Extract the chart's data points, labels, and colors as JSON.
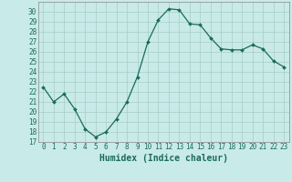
{
  "x": [
    0,
    1,
    2,
    3,
    4,
    5,
    6,
    7,
    8,
    9,
    10,
    11,
    12,
    13,
    14,
    15,
    16,
    17,
    18,
    19,
    20,
    21,
    22,
    23
  ],
  "y": [
    22.5,
    21.0,
    21.8,
    20.3,
    18.3,
    17.5,
    18.0,
    19.3,
    21.0,
    23.5,
    27.0,
    29.2,
    30.3,
    30.2,
    28.8,
    28.7,
    27.4,
    26.3,
    26.2,
    26.2,
    26.7,
    26.3,
    25.1,
    24.5
  ],
  "xlabel": "Humidex (Indice chaleur)",
  "ylim": [
    17,
    31
  ],
  "xlim": [
    -0.5,
    23.5
  ],
  "yticks": [
    17,
    18,
    19,
    20,
    21,
    22,
    23,
    24,
    25,
    26,
    27,
    28,
    29,
    30
  ],
  "xticks": [
    0,
    1,
    2,
    3,
    4,
    5,
    6,
    7,
    8,
    9,
    10,
    11,
    12,
    13,
    14,
    15,
    16,
    17,
    18,
    19,
    20,
    21,
    22,
    23
  ],
  "line_color": "#1a6b5a",
  "marker_color": "#1a6b5a",
  "bg_color": "#c8eae8",
  "grid_color": "#a8ccc8",
  "tick_fontsize": 5.5,
  "xlabel_fontsize": 7.0
}
